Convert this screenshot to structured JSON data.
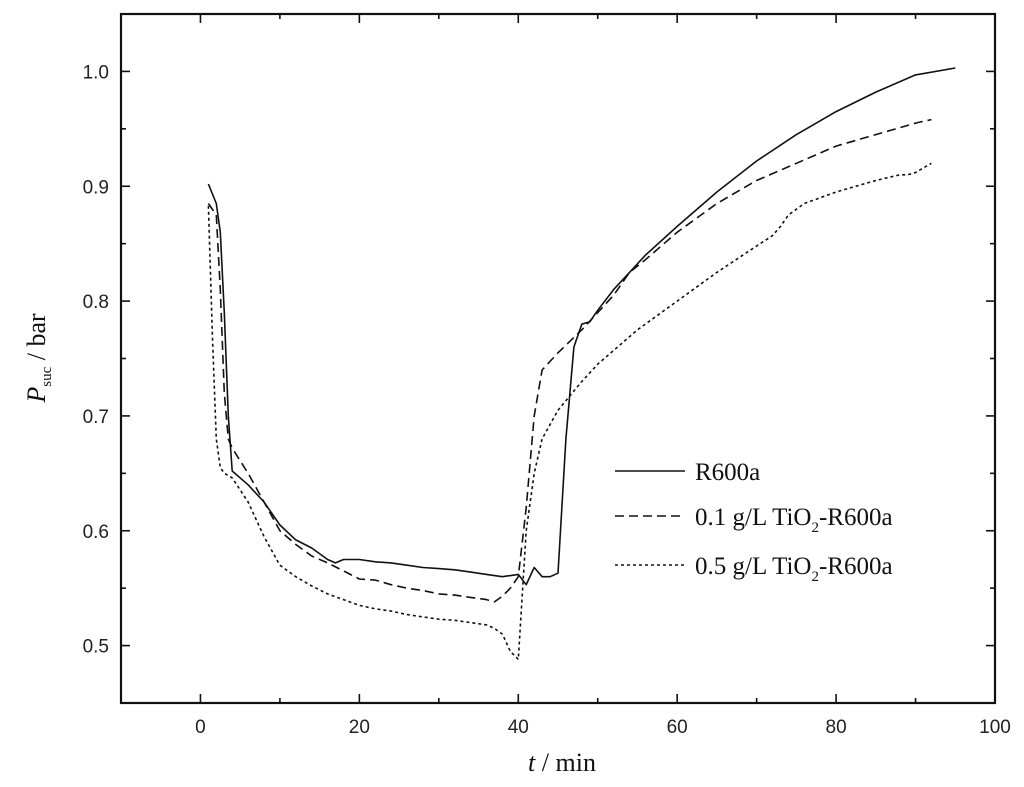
{
  "chart_data": {
    "type": "line",
    "title": "",
    "xlabel": {
      "var": "t",
      "rest": " / min"
    },
    "ylabel": {
      "var": "P",
      "sub": "suc",
      "rest": " / bar"
    },
    "xlim": [
      -10,
      100
    ],
    "ylim": [
      0.45,
      1.05
    ],
    "xticks": [
      "0",
      "20",
      "40",
      "60",
      "80",
      "100"
    ],
    "yticks": [
      "0.5",
      "0.6",
      "0.7",
      "0.8",
      "0.9",
      "1.0"
    ],
    "grid": false,
    "legend_position": "center-right",
    "series": [
      {
        "name": "R600a",
        "legend": {
          "main": "R600a"
        },
        "dash": "",
        "x": [
          1,
          2,
          2.5,
          3,
          3.5,
          4,
          6,
          8,
          10,
          12,
          14,
          16,
          17,
          18,
          20,
          22,
          24,
          26,
          28,
          30,
          32,
          34,
          36,
          38,
          40,
          41,
          42,
          43,
          44,
          45,
          46,
          47,
          48,
          49,
          50,
          52,
          54,
          56,
          60,
          65,
          70,
          75,
          80,
          85,
          90,
          95
        ],
        "y": [
          0.902,
          0.885,
          0.86,
          0.79,
          0.7,
          0.652,
          0.64,
          0.625,
          0.605,
          0.592,
          0.585,
          0.575,
          0.572,
          0.575,
          0.575,
          0.573,
          0.572,
          0.57,
          0.568,
          0.567,
          0.566,
          0.564,
          0.562,
          0.56,
          0.562,
          0.553,
          0.568,
          0.56,
          0.56,
          0.563,
          0.68,
          0.76,
          0.78,
          0.782,
          0.792,
          0.81,
          0.825,
          0.84,
          0.865,
          0.895,
          0.922,
          0.945,
          0.965,
          0.982,
          0.997,
          1.003
        ]
      },
      {
        "name": "0.1 g/L TiO2-R600a",
        "legend": {
          "main": "0.1 g/L TiO",
          "sub": "2",
          "rest": "-R600a"
        },
        "dash": "9 5",
        "x": [
          1,
          2,
          2.5,
          3,
          3.5,
          4,
          6,
          8,
          10,
          12,
          14,
          16,
          18,
          20,
          22,
          24,
          26,
          28,
          30,
          32,
          34,
          36,
          37,
          38,
          39,
          40,
          41,
          42,
          43,
          45,
          48,
          50,
          52,
          54,
          56,
          60,
          65,
          70,
          75,
          80,
          85,
          90,
          92
        ],
        "y": [
          0.885,
          0.875,
          0.81,
          0.72,
          0.68,
          0.672,
          0.65,
          0.625,
          0.6,
          0.588,
          0.578,
          0.572,
          0.565,
          0.558,
          0.557,
          0.553,
          0.55,
          0.548,
          0.545,
          0.544,
          0.542,
          0.54,
          0.538,
          0.543,
          0.55,
          0.56,
          0.62,
          0.7,
          0.74,
          0.755,
          0.775,
          0.79,
          0.805,
          0.825,
          0.836,
          0.86,
          0.885,
          0.905,
          0.92,
          0.935,
          0.945,
          0.955,
          0.958
        ]
      },
      {
        "name": "0.5 g/L TiO2-R600a",
        "legend": {
          "main": "0.5 g/L TiO",
          "sub": "2",
          "rest": "-R600a"
        },
        "dash": "3 3",
        "x": [
          1,
          1.5,
          2,
          2.5,
          3,
          3.5,
          4,
          6,
          8,
          10,
          12,
          14,
          16,
          18,
          20,
          22,
          24,
          26,
          28,
          30,
          32,
          34,
          36,
          37,
          38,
          39,
          40,
          41,
          42,
          43,
          45,
          48,
          50,
          55,
          60,
          65,
          70,
          72,
          73,
          74,
          76,
          80,
          85,
          88,
          89,
          90,
          92
        ],
        "y": [
          0.883,
          0.77,
          0.68,
          0.655,
          0.65,
          0.648,
          0.646,
          0.625,
          0.595,
          0.57,
          0.56,
          0.552,
          0.545,
          0.54,
          0.535,
          0.532,
          0.53,
          0.527,
          0.525,
          0.523,
          0.522,
          0.52,
          0.518,
          0.515,
          0.51,
          0.495,
          0.488,
          0.6,
          0.65,
          0.68,
          0.705,
          0.73,
          0.745,
          0.775,
          0.8,
          0.825,
          0.848,
          0.857,
          0.865,
          0.875,
          0.885,
          0.895,
          0.905,
          0.91,
          0.91,
          0.912,
          0.92
        ]
      }
    ]
  }
}
